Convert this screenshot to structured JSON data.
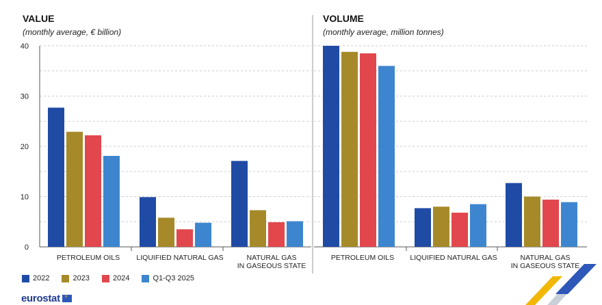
{
  "colors": {
    "2022": "#1f4ba5",
    "2023": "#a68a2a",
    "2024": "#e1474c",
    "Q1-Q3 2025": "#3d86cf"
  },
  "chart_data": [
    {
      "type": "bar",
      "title": "VALUE",
      "subtitle": "(monthly average, € billion)",
      "ylim": [
        0,
        40
      ],
      "yticks": [
        0,
        10,
        20,
        30,
        40
      ],
      "grid": true,
      "categories": [
        "PETROLEUM OILS",
        "LIQUIFIED NATURAL GAS",
        "NATURAL GAS IN GASEOUS STATE"
      ],
      "series": [
        {
          "name": "2022",
          "values": [
            27.7,
            9.9,
            17.1
          ]
        },
        {
          "name": "2023",
          "values": [
            22.9,
            5.8,
            7.3
          ]
        },
        {
          "name": "2024",
          "values": [
            22.2,
            3.5,
            4.9
          ]
        },
        {
          "name": "Q1-Q3 2025",
          "values": [
            18.1,
            4.8,
            5.1
          ]
        }
      ]
    },
    {
      "type": "bar",
      "title": "VOLUME",
      "subtitle": "(monthly average, million tonnes)",
      "ylim": [
        0,
        40
      ],
      "grid": true,
      "categories": [
        "PETROLEUM OILS",
        "LIQUIFIED NATURAL GAS",
        "NATURAL GAS IN GASEOUS STATE"
      ],
      "series": [
        {
          "name": "2022",
          "values": [
            40.0,
            7.7,
            12.7
          ]
        },
        {
          "name": "2023",
          "values": [
            38.8,
            8.0,
            10.0
          ]
        },
        {
          "name": "2024",
          "values": [
            38.5,
            6.8,
            9.4
          ]
        },
        {
          "name": "Q1-Q3 2025",
          "values": [
            36.0,
            8.5,
            8.9
          ]
        }
      ]
    }
  ],
  "category_labels": [
    [
      "PETROLEUM OILS"
    ],
    [
      "LIQUIFIED NATURAL GAS"
    ],
    [
      "NATURAL GAS",
      "IN GASEOUS STATE"
    ]
  ],
  "legend": [
    {
      "label": "2022",
      "color": "#1f4ba5"
    },
    {
      "label": "2023",
      "color": "#a68a2a"
    },
    {
      "label": "2024",
      "color": "#e1474c"
    },
    {
      "label": "Q1-Q3 2025",
      "color": "#3d86cf"
    }
  ],
  "branding": {
    "logo_text": "eurostat"
  }
}
